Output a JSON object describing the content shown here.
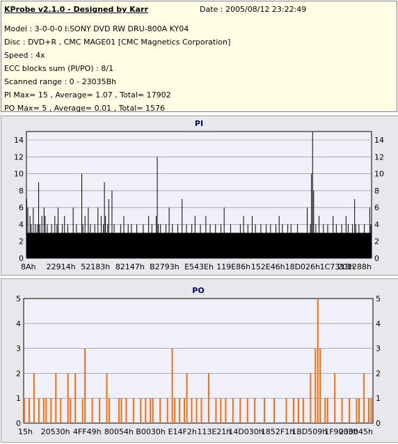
{
  "header": {
    "title": "KProbe v2.1.0 - Designed by Karr",
    "date": "Date : 2005/08/12 23:22:49",
    "lines": [
      "Model : 3-0-0-0 I:SONY     DVD RW DRU-800A  KY04",
      "Disc : DVD+R , CMC MAGE01 [CMC Magnetics Corporation]",
      "Speed : 4x",
      "ECC blocks sum (PI/PO) : 8/1",
      "Scanned range : 0 - 23035Bh",
      "PI Max= 15 , Average= 1.07 , Total= 17902",
      "PO Max= 5 , Average= 0.01 , Total= 1576"
    ]
  },
  "colors": {
    "pi_bar": "#000000",
    "po_bar": "#ff6600",
    "plot_bg": "#f0f0fa",
    "grid": "#808080",
    "title": "#000060"
  },
  "chart_data": [
    {
      "type": "bar",
      "title": "PI",
      "xlabel": "",
      "ylabel": "",
      "ylim": [
        0,
        15
      ],
      "y_ticks": [
        0,
        2,
        4,
        6,
        8,
        10,
        12,
        14
      ],
      "x_tick_labels": [
        "8Ah",
        "22914h",
        "52183h",
        "82147h",
        "B2793h",
        "E543Eh",
        "119E86h",
        "152E46h",
        "18D026h",
        "1C7313h",
        "201288h"
      ],
      "grid": true,
      "baseline": 3,
      "series": [
        {
          "values": [
            7,
            6,
            3,
            5,
            4,
            3,
            6,
            3,
            4,
            3,
            4,
            9,
            4,
            3,
            5,
            3,
            6,
            5,
            3,
            4,
            3,
            3,
            3,
            4,
            3,
            3,
            5,
            3,
            4,
            6,
            3,
            3,
            3,
            4,
            3,
            5,
            3,
            3,
            4,
            3,
            3,
            3,
            3,
            6,
            3,
            3,
            4,
            3,
            3,
            3,
            3,
            10,
            4,
            3,
            5,
            3,
            3,
            6,
            3,
            4,
            3,
            3,
            3,
            4,
            3,
            3,
            6,
            3,
            3,
            5,
            3,
            4,
            9,
            5,
            3,
            4,
            7,
            3,
            3,
            8,
            3,
            4,
            3,
            3,
            3,
            3,
            3,
            4,
            3,
            3,
            5,
            3,
            3,
            3,
            4,
            3,
            3,
            4,
            3,
            3,
            3,
            3,
            4,
            3,
            3,
            3,
            3,
            3,
            4,
            3,
            3,
            3,
            3,
            5,
            3,
            3,
            4,
            3,
            3,
            3,
            5,
            12,
            4,
            3,
            4,
            3,
            3,
            3,
            3,
            4,
            3,
            3,
            6,
            3,
            3,
            4,
            3,
            3,
            3,
            3,
            4,
            3,
            3,
            3,
            7,
            3,
            3,
            3,
            4,
            3,
            3,
            3,
            3,
            4,
            3,
            3,
            5,
            3,
            3,
            3,
            3,
            4,
            3,
            3,
            3,
            3,
            5,
            3,
            3,
            3,
            4,
            3,
            3,
            3,
            3,
            4,
            3,
            3,
            3,
            3,
            4,
            3,
            3,
            6,
            3,
            3,
            3,
            3,
            3,
            4,
            3,
            3,
            3,
            3,
            3,
            3,
            3,
            3,
            4,
            3,
            3,
            5,
            3,
            3,
            3,
            4,
            3,
            3,
            3,
            5,
            3,
            3,
            4,
            3,
            3,
            3,
            3,
            4,
            3,
            3,
            3,
            3,
            4,
            3,
            3,
            3,
            4,
            3,
            3,
            3,
            3,
            4,
            3,
            3,
            5,
            3,
            3,
            4,
            3,
            3,
            3,
            3,
            4,
            3,
            3,
            4,
            3,
            3,
            3,
            3,
            3,
            4,
            3,
            3,
            3,
            3,
            3,
            3,
            3,
            3,
            6,
            3,
            3,
            4,
            10,
            15,
            8,
            3,
            4,
            3,
            3,
            5,
            3,
            3,
            3,
            4,
            3,
            3,
            3,
            4,
            3,
            3,
            3,
            3,
            5,
            3,
            3,
            4,
            3,
            3,
            3,
            3,
            4,
            3,
            3,
            3,
            5,
            3,
            4,
            3,
            3,
            3,
            4,
            3,
            7,
            4,
            3,
            3,
            4,
            3,
            3,
            3,
            3,
            4,
            3,
            3,
            3,
            3,
            6,
            4
          ]
        }
      ]
    },
    {
      "type": "bar",
      "title": "PO",
      "xlabel": "",
      "ylabel": "",
      "ylim": [
        0,
        5
      ],
      "y_ticks": [
        0,
        1,
        2,
        3,
        4,
        5
      ],
      "x_tick_labels": [
        "15h",
        "20530h",
        "4FF49h",
        "80054h",
        "B0030h",
        "E14F2h",
        "113E21h",
        "14D030h",
        "1852F1h",
        "1BD509h",
        "1F9003h",
        "230045h"
      ],
      "grid": true,
      "baseline": 0,
      "series": [
        {
          "values": [
            1,
            0,
            1,
            0,
            2,
            0,
            1,
            0,
            1,
            1,
            0,
            1,
            0,
            2,
            0,
            1,
            0,
            0,
            2,
            1,
            0,
            2,
            0,
            0,
            1,
            3,
            0,
            0,
            1,
            0,
            0,
            1,
            0,
            0,
            2,
            1,
            0,
            0,
            0,
            1,
            1,
            0,
            1,
            0,
            0,
            1,
            0,
            0,
            1,
            0,
            1,
            0,
            1,
            1,
            0,
            0,
            1,
            0,
            0,
            1,
            0,
            3,
            1,
            0,
            1,
            0,
            1,
            2,
            0,
            1,
            0,
            1,
            0,
            1,
            0,
            0,
            2,
            0,
            0,
            1,
            0,
            1,
            0,
            1,
            0,
            0,
            1,
            0,
            0,
            1,
            0,
            0,
            1,
            0,
            0,
            1,
            0,
            0,
            0,
            1,
            0,
            0,
            0,
            1,
            0,
            0,
            0,
            0,
            1,
            0,
            0,
            1,
            0,
            1,
            0,
            1,
            0,
            0,
            2,
            0,
            3,
            5,
            3,
            0,
            1,
            1,
            0,
            0,
            2,
            0,
            0,
            1,
            0,
            0,
            1,
            0,
            0,
            1,
            1,
            0,
            2,
            0,
            1,
            1
          ]
        }
      ]
    }
  ]
}
